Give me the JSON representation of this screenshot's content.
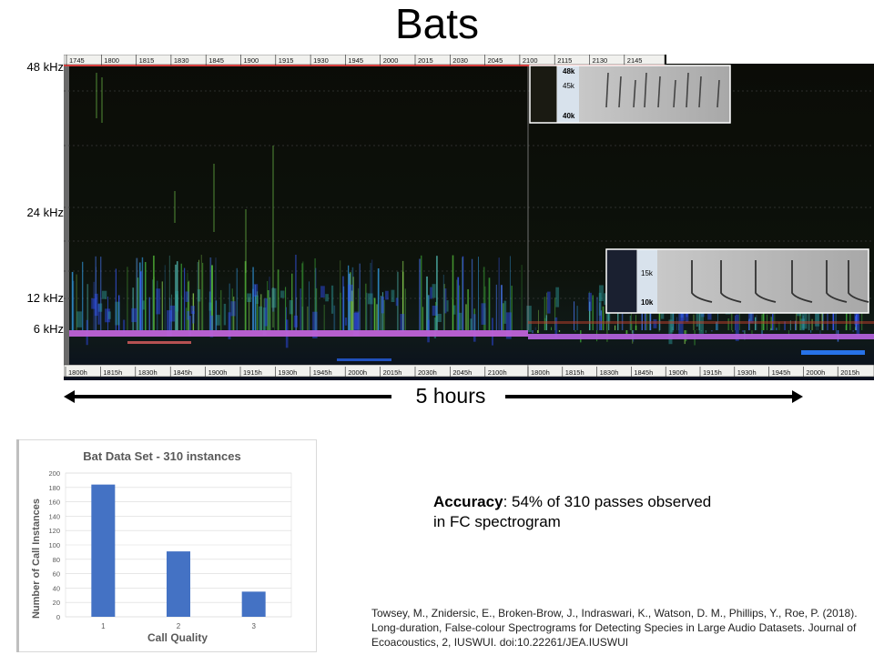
{
  "slide": {
    "title": "Bats"
  },
  "spectrogram": {
    "frequency_labels": [
      "48 kHz",
      "24 kHz",
      "12 kHz",
      "6 kHz"
    ],
    "top_time_ticks": [
      "1745",
      "1800",
      "1815",
      "1830",
      "1845",
      "1900",
      "1915",
      "1930",
      "1945",
      "2000",
      "2015",
      "2030",
      "2045",
      "2100",
      "2115",
      "2130",
      "2145"
    ],
    "bottom_time_ticks_a": [
      "1800h",
      "1815h",
      "1830h",
      "1845h",
      "1900h",
      "1915h",
      "1930h",
      "1945h",
      "2000h",
      "2015h",
      "2030h",
      "2045h",
      "2100h"
    ],
    "bottom_time_ticks_b": [
      "1800h",
      "1815h",
      "1830h",
      "1845h",
      "1900h",
      "1915h",
      "1930h",
      "1945h",
      "2000h",
      "2015h"
    ],
    "inset_top_labels": [
      "48k",
      "45k",
      "40k"
    ],
    "inset_bottom_labels": [
      "15k",
      "10k"
    ],
    "duration_label": "5 hours",
    "colors": {
      "background": "#0b0d08",
      "band": "#c060e0",
      "ruler": "#1a1a40"
    }
  },
  "chart_data": {
    "type": "bar",
    "title": "Bat Data Set - 310 instances",
    "xlabel": "Call Quality",
    "ylabel": "Number of Call Instances",
    "categories": [
      "1",
      "2",
      "3"
    ],
    "values": [
      184,
      91,
      35
    ],
    "ylim": [
      0,
      200
    ],
    "yticks": [
      "0",
      "20",
      "40",
      "60",
      "80",
      "100",
      "120",
      "140",
      "160",
      "180",
      "200"
    ],
    "color": "#4472c4"
  },
  "accuracy": {
    "label": "Accuracy",
    "text": ": 54% of 310 passes observed in FC spectrogram"
  },
  "citation": "Towsey, M., Znidersic, E., Broken-Brow, J., Indraswari, K., Watson, D. M., Phillips, Y., Roe, P. (2018). Long-duration, False-colour Spectrograms for Detecting Species in Large Audio Datasets. Journal of Ecoacoustics, 2, IUSWUI. doi:10.22261/JEA.IUSWUI"
}
